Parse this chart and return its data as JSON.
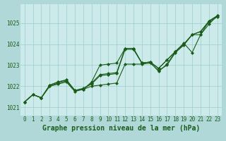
{
  "xlabel": "Graphe pression niveau de la mer (hPa)",
  "xlim": [
    -0.5,
    23.5
  ],
  "ylim": [
    1020.6,
    1025.9
  ],
  "yticks": [
    1021,
    1022,
    1023,
    1024,
    1025
  ],
  "xticks": [
    0,
    1,
    2,
    3,
    4,
    5,
    6,
    7,
    8,
    9,
    10,
    11,
    12,
    13,
    14,
    15,
    16,
    17,
    18,
    19,
    20,
    21,
    22,
    23
  ],
  "background_color": "#cceaea",
  "grid_color": "#99cccc",
  "line_color": "#1a5c1a",
  "series": [
    [
      1021.25,
      1021.6,
      1021.45,
      1022.0,
      1022.1,
      1022.2,
      1021.75,
      1021.85,
      1022.0,
      1022.05,
      1022.1,
      1022.15,
      1023.05,
      1023.05,
      1023.05,
      1023.1,
      1022.75,
      1023.0,
      1023.6,
      1023.95,
      1024.45,
      1024.6,
      1025.05,
      1025.3
    ],
    [
      1021.25,
      1021.6,
      1021.45,
      1022.0,
      1022.15,
      1022.25,
      1021.8,
      1021.9,
      1022.1,
      1022.5,
      1022.55,
      1022.6,
      1023.75,
      1023.75,
      1023.1,
      1023.15,
      1022.7,
      1023.05,
      1023.65,
      1024.0,
      1024.45,
      1024.6,
      1025.1,
      1025.35
    ],
    [
      1021.25,
      1021.6,
      1021.45,
      1022.05,
      1022.2,
      1022.3,
      1021.8,
      1021.85,
      1022.15,
      1022.55,
      1022.6,
      1022.65,
      1023.8,
      1023.8,
      1023.1,
      1023.15,
      1022.85,
      1023.25,
      1023.65,
      1024.05,
      1023.6,
      1024.45,
      1024.95,
      1025.35
    ],
    [
      1021.25,
      1021.6,
      1021.45,
      1022.05,
      1022.2,
      1022.3,
      1021.8,
      1021.85,
      1022.2,
      1023.0,
      1023.05,
      1023.1,
      1023.8,
      1023.8,
      1023.1,
      1023.15,
      1022.85,
      1023.25,
      1023.65,
      1024.0,
      1024.45,
      1024.45,
      1025.1,
      1025.35
    ]
  ],
  "marker": "D",
  "markersize": 2.0,
  "linewidth": 0.8,
  "tick_fontsize": 5.5,
  "xlabel_fontsize": 7.0,
  "xlabel_bold": true,
  "fig_bg": "#b0d8d8",
  "xlabel_color": "#1a5c1a"
}
